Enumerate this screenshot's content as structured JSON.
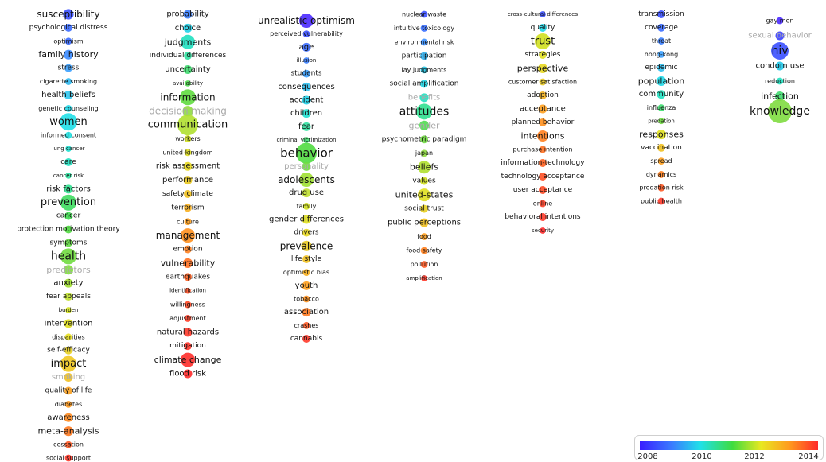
{
  "colors": {
    "c2008": "#3a1dff",
    "c2009": "#3a7bff",
    "c2010": "#20d8e8",
    "c2011": "#3fdc3f",
    "c2012": "#e8e820",
    "c2013": "#ff9a1e",
    "c2014": "#ff2a2a"
  },
  "legend": {
    "ticks": [
      "2008",
      "2010",
      "2012",
      "2014"
    ]
  },
  "columns": [
    {
      "nodes": [
        {
          "t": "susceptibility",
          "s": 12,
          "c": "#3a50ff"
        },
        {
          "t": "psychological distress",
          "s": 9,
          "c": "#3a6bff"
        },
        {
          "t": "optimism",
          "s": 8,
          "c": "#3a6bff"
        },
        {
          "t": "family history",
          "s": 11,
          "c": "#3a8bff"
        },
        {
          "t": "stress",
          "s": 9,
          "c": "#3aa0ff"
        },
        {
          "t": "cigarette smoking",
          "s": 8,
          "c": "#30b8f0"
        },
        {
          "t": "health beliefs",
          "s": 10,
          "c": "#30c8f0"
        },
        {
          "t": "genetic counseling",
          "s": 8,
          "c": "#20d8e8"
        },
        {
          "t": "women",
          "s": 13,
          "c": "#20e0e8",
          "b": 22
        },
        {
          "t": "informed consent",
          "s": 8,
          "c": "#20e0e0"
        },
        {
          "t": "lung cancer",
          "s": 7,
          "c": "#20e0d0"
        },
        {
          "t": "care",
          "s": 9,
          "c": "#20e0c0"
        },
        {
          "t": "cancer risk",
          "s": 7,
          "c": "#30e0a0"
        },
        {
          "t": "risk factors",
          "s": 10,
          "c": "#30e090"
        },
        {
          "t": "prevention",
          "s": 13,
          "c": "#3fdc60",
          "b": 20
        },
        {
          "t": "cancer",
          "s": 9,
          "c": "#3fdc50"
        },
        {
          "t": "protection motivation theory",
          "s": 9,
          "c": "#50dc40"
        },
        {
          "t": "symptoms",
          "s": 9,
          "c": "#60dc40"
        },
        {
          "t": "health",
          "s": 14,
          "c": "#70dc40",
          "b": 20
        },
        {
          "t": "predictors",
          "s": 11,
          "c": "#80dc40",
          "g": 1
        },
        {
          "t": "anxiety",
          "s": 10,
          "c": "#a0e030"
        },
        {
          "t": "fear appeals",
          "s": 9,
          "c": "#c0e030"
        },
        {
          "t": "burden",
          "s": 7,
          "c": "#d0e020"
        },
        {
          "t": "intervention",
          "s": 10,
          "c": "#e0e020"
        },
        {
          "t": "disparities",
          "s": 8,
          "c": "#e8e020"
        },
        {
          "t": "self-efficacy",
          "s": 9,
          "c": "#e8d020"
        },
        {
          "t": "impact",
          "s": 13,
          "c": "#f0c820",
          "b": 20
        },
        {
          "t": "smoking",
          "s": 10,
          "c": "#f0c020",
          "g": 1
        },
        {
          "t": "quality of life",
          "s": 9,
          "c": "#f8a020"
        },
        {
          "t": "diabetes",
          "s": 8,
          "c": "#ff9a1e"
        },
        {
          "t": "awareness",
          "s": 10,
          "c": "#ff8a1e"
        },
        {
          "t": "meta-analysis",
          "s": 11,
          "c": "#ff7a20"
        },
        {
          "t": "cessation",
          "s": 8,
          "c": "#ff5a25"
        },
        {
          "t": "social support",
          "s": 8,
          "c": "#ff3a2a"
        }
      ]
    },
    {
      "nodes": [
        {
          "t": "probability",
          "s": 10,
          "c": "#3a80ff"
        },
        {
          "t": "choice",
          "s": 10,
          "c": "#20d0e8"
        },
        {
          "t": "judgments",
          "s": 11,
          "c": "#20e0c0",
          "b": 18
        },
        {
          "t": "individual differences",
          "s": 9,
          "c": "#30e0a0"
        },
        {
          "t": "uncertainty",
          "s": 10,
          "c": "#40dc70"
        },
        {
          "t": "availability",
          "s": 7,
          "c": "#50dc50"
        },
        {
          "t": "information",
          "s": 12,
          "c": "#60dc40",
          "b": 20
        },
        {
          "t": "decision making",
          "s": 12,
          "c": "#90dc40",
          "g": 1
        },
        {
          "t": "communication",
          "s": 13,
          "c": "#b0e030",
          "b": 26
        },
        {
          "t": "workers",
          "s": 8,
          "c": "#d0e020"
        },
        {
          "t": "united-kingdom",
          "s": 8,
          "c": "#e0e020"
        },
        {
          "t": "risk assessment",
          "s": 10,
          "c": "#e8d820"
        },
        {
          "t": "performance",
          "s": 10,
          "c": "#e8c820"
        },
        {
          "t": "safety climate",
          "s": 9,
          "c": "#f0c020"
        },
        {
          "t": "terrorism",
          "s": 9,
          "c": "#f8b020"
        },
        {
          "t": "culture",
          "s": 8,
          "c": "#ffa01e"
        },
        {
          "t": "management",
          "s": 12,
          "c": "#ff901e",
          "b": 18
        },
        {
          "t": "emotion",
          "s": 9,
          "c": "#ff801e"
        },
        {
          "t": "vulnerability",
          "s": 11,
          "c": "#ff7020"
        },
        {
          "t": "earthquakes",
          "s": 9,
          "c": "#ff6020"
        },
        {
          "t": "identification",
          "s": 7,
          "c": "#ff5025"
        },
        {
          "t": "willingness",
          "s": 8,
          "c": "#ff4a25"
        },
        {
          "t": "adjustment",
          "s": 8,
          "c": "#ff4028"
        },
        {
          "t": "natural hazards",
          "s": 10,
          "c": "#ff3a2a"
        },
        {
          "t": "mitigation",
          "s": 9,
          "c": "#ff342a"
        },
        {
          "t": "climate change",
          "s": 11,
          "c": "#ff2e2a",
          "b": 18
        },
        {
          "t": "flood risk",
          "s": 10,
          "c": "#ff2a2a"
        }
      ]
    },
    {
      "nodes": [
        {
          "t": "unrealistic optimism",
          "s": 12,
          "c": "#4a2aff",
          "b": 18
        },
        {
          "t": "perceived vulnerability",
          "s": 8,
          "c": "#3a50ff"
        },
        {
          "t": "age",
          "s": 10,
          "c": "#3a6bff"
        },
        {
          "t": "illusion",
          "s": 7,
          "c": "#3a80ff"
        },
        {
          "t": "students",
          "s": 9,
          "c": "#3aa0ff"
        },
        {
          "t": "consequences",
          "s": 10,
          "c": "#30c0f0"
        },
        {
          "t": "accident",
          "s": 10,
          "c": "#20d0e8"
        },
        {
          "t": "children",
          "s": 10,
          "c": "#20e0d0"
        },
        {
          "t": "fear",
          "s": 10,
          "c": "#30e0a0"
        },
        {
          "t": "criminal victimization",
          "s": 7,
          "c": "#40dc70"
        },
        {
          "t": "behavior",
          "s": 15,
          "c": "#50dc40",
          "b": 26
        },
        {
          "t": "personality",
          "s": 10,
          "c": "#70dc40",
          "g": 1
        },
        {
          "t": "adolescents",
          "s": 12,
          "c": "#a0e030",
          "b": 18
        },
        {
          "t": "drug use",
          "s": 10,
          "c": "#c0e030"
        },
        {
          "t": "family",
          "s": 8,
          "c": "#d0e020"
        },
        {
          "t": "gender differences",
          "s": 10,
          "c": "#e0e020"
        },
        {
          "t": "drivers",
          "s": 9,
          "c": "#e8d820"
        },
        {
          "t": "prevalence",
          "s": 12,
          "c": "#e8c820"
        },
        {
          "t": "life style",
          "s": 9,
          "c": "#f0c020"
        },
        {
          "t": "optimistic bias",
          "s": 8,
          "c": "#f8b020"
        },
        {
          "t": "youth",
          "s": 10,
          "c": "#ffa01e"
        },
        {
          "t": "tobacco",
          "s": 8,
          "c": "#ff901e"
        },
        {
          "t": "association",
          "s": 10,
          "c": "#ff7a20"
        },
        {
          "t": "crashes",
          "s": 8,
          "c": "#ff5a25"
        },
        {
          "t": "cannabis",
          "s": 9,
          "c": "#ff3a2a"
        }
      ]
    },
    {
      "nodes": [
        {
          "t": "nuclear waste",
          "s": 8,
          "c": "#3a50ff"
        },
        {
          "t": "intuitive toxicology",
          "s": 8,
          "c": "#3a70ff"
        },
        {
          "t": "environmental risk",
          "s": 8,
          "c": "#3a90ff"
        },
        {
          "t": "participation",
          "s": 9,
          "c": "#30b0f0"
        },
        {
          "t": "lay judgments",
          "s": 8,
          "c": "#20c8e8"
        },
        {
          "t": "social amplification",
          "s": 9,
          "c": "#20d8e8"
        },
        {
          "t": "benefits",
          "s": 10,
          "c": "#20e0c0",
          "g": 1
        },
        {
          "t": "attitudes",
          "s": 14,
          "c": "#30e090",
          "b": 20
        },
        {
          "t": "gender",
          "s": 11,
          "c": "#50dc50",
          "g": 1
        },
        {
          "t": "psychometric paradigm",
          "s": 9,
          "c": "#70dc40"
        },
        {
          "t": "japan",
          "s": 8,
          "c": "#90dc40"
        },
        {
          "t": "beliefs",
          "s": 11,
          "c": "#b0e030",
          "b": 16
        },
        {
          "t": "values",
          "s": 9,
          "c": "#d0e020"
        },
        {
          "t": "united-states",
          "s": 11,
          "c": "#e0e020",
          "b": 16
        },
        {
          "t": "social trust",
          "s": 9,
          "c": "#e8d020"
        },
        {
          "t": "public perceptions",
          "s": 10,
          "c": "#f0c020"
        },
        {
          "t": "food",
          "s": 8,
          "c": "#ffa01e"
        },
        {
          "t": "food safety",
          "s": 8,
          "c": "#ff801e"
        },
        {
          "t": "pollution",
          "s": 8,
          "c": "#ff5a25"
        },
        {
          "t": "amplification",
          "s": 7,
          "c": "#ff3a2a"
        }
      ]
    },
    {
      "nodes": [
        {
          "t": "cross-cultural differences",
          "s": 7,
          "c": "#3a50ff"
        },
        {
          "t": "quality",
          "s": 9,
          "c": "#20d8e8"
        },
        {
          "t": "trust",
          "s": 13,
          "c": "#d0e020",
          "b": 20
        },
        {
          "t": "strategies",
          "s": 9,
          "c": "#e0e020"
        },
        {
          "t": "perspective",
          "s": 11,
          "c": "#e8d820"
        },
        {
          "t": "customer satisfaction",
          "s": 8,
          "c": "#e8c820"
        },
        {
          "t": "adoption",
          "s": 9,
          "c": "#f0b020"
        },
        {
          "t": "acceptance",
          "s": 10,
          "c": "#ffa01e"
        },
        {
          "t": "planned behavior",
          "s": 9,
          "c": "#ff901e"
        },
        {
          "t": "intentions",
          "s": 11,
          "c": "#ff801e",
          "b": 14
        },
        {
          "t": "purchase intention",
          "s": 8,
          "c": "#ff7020"
        },
        {
          "t": "information-technology",
          "s": 9,
          "c": "#ff6020"
        },
        {
          "t": "technology acceptance",
          "s": 9,
          "c": "#ff5025"
        },
        {
          "t": "user acceptance",
          "s": 9,
          "c": "#ff4a25"
        },
        {
          "t": "online",
          "s": 8,
          "c": "#ff4028"
        },
        {
          "t": "behavioral intentions",
          "s": 9,
          "c": "#ff3a2a"
        },
        {
          "t": "security",
          "s": 7,
          "c": "#ff2a2a"
        }
      ]
    },
    {
      "nodes": [
        {
          "t": "transmission",
          "s": 9,
          "c": "#3a50ff"
        },
        {
          "t": "coverage",
          "s": 9,
          "c": "#3a6bff"
        },
        {
          "t": "threat",
          "s": 8,
          "c": "#3a80ff"
        },
        {
          "t": "hong-kong",
          "s": 8,
          "c": "#3aa0ff"
        },
        {
          "t": "epidemic",
          "s": 9,
          "c": "#30c0f0"
        },
        {
          "t": "population",
          "s": 11,
          "c": "#20d8e8"
        },
        {
          "t": "community",
          "s": 10,
          "c": "#20e0c0"
        },
        {
          "t": "influenza",
          "s": 8,
          "c": "#40dc70"
        },
        {
          "t": "predation",
          "s": 7,
          "c": "#70dc40"
        },
        {
          "t": "responses",
          "s": 11,
          "c": "#e0e020"
        },
        {
          "t": "vaccination",
          "s": 9,
          "c": "#f0c020"
        },
        {
          "t": "spread",
          "s": 8,
          "c": "#ffa01e"
        },
        {
          "t": "dynamics",
          "s": 8,
          "c": "#ff801e"
        },
        {
          "t": "predation risk",
          "s": 8,
          "c": "#ff5a25"
        },
        {
          "t": "public health",
          "s": 8,
          "c": "#ff3a2a"
        }
      ]
    },
    {
      "nodes": [
        {
          "t": "gay men",
          "s": 8,
          "c": "#4a2aff"
        },
        {
          "t": "sexual behavior",
          "s": 10,
          "c": "#3a40ff",
          "g": 1
        },
        {
          "t": "hiv",
          "s": 14,
          "c": "#3a50ff",
          "b": 22
        },
        {
          "t": "condom use",
          "s": 10,
          "c": "#20c8e8"
        },
        {
          "t": "reduction",
          "s": 8,
          "c": "#20e0c0"
        },
        {
          "t": "infection",
          "s": 11,
          "c": "#40dc70"
        },
        {
          "t": "knowledge",
          "s": 14,
          "c": "#80dc40",
          "b": 30
        }
      ]
    }
  ]
}
